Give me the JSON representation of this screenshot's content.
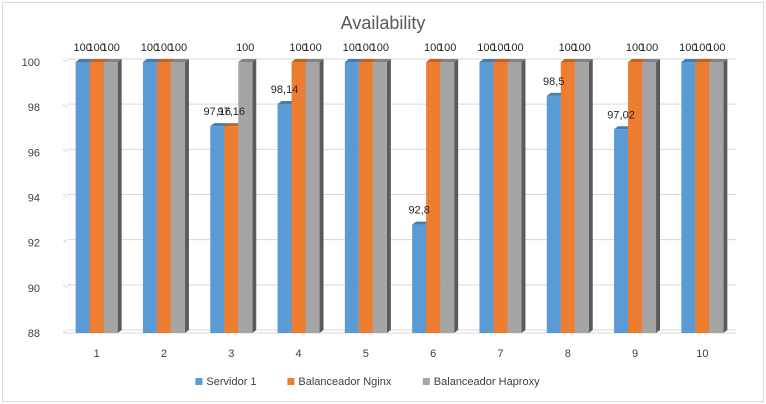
{
  "chart_data": {
    "type": "bar",
    "title": "Availability",
    "xlabel": "",
    "ylabel": "",
    "ylim": [
      88,
      100
    ],
    "yticks": [
      88,
      90,
      92,
      94,
      96,
      98,
      100
    ],
    "grid": true,
    "legend_position": "bottom",
    "categories": [
      "1",
      "2",
      "3",
      "4",
      "5",
      "6",
      "7",
      "8",
      "9",
      "10"
    ],
    "series": [
      {
        "name": "Servidor 1",
        "color": "#5B9BD5",
        "values": [
          100,
          100,
          97.16,
          98.14,
          100,
          92.8,
          100,
          98.5,
          97.02,
          100
        ],
        "labels": [
          "100",
          "100",
          "97,16",
          "98,14",
          "100",
          "92,8",
          "100",
          "98,5",
          "97,02",
          "100"
        ]
      },
      {
        "name": "Balanceador Nginx",
        "color": "#ED7D31",
        "values": [
          100,
          100,
          97.16,
          100,
          100,
          100,
          100,
          100,
          100,
          100
        ],
        "labels": [
          "100",
          "100",
          "97,16",
          "100",
          "100",
          "100",
          "100",
          "100",
          "100",
          "100"
        ]
      },
      {
        "name": "Balanceador Haproxy",
        "color": "#A5A5A5",
        "values": [
          100,
          100,
          100,
          100,
          100,
          100,
          100,
          100,
          100,
          100
        ],
        "labels": [
          "100",
          "100",
          "100",
          "100",
          "100",
          "100",
          "100",
          "100",
          "100",
          "100"
        ]
      }
    ]
  }
}
